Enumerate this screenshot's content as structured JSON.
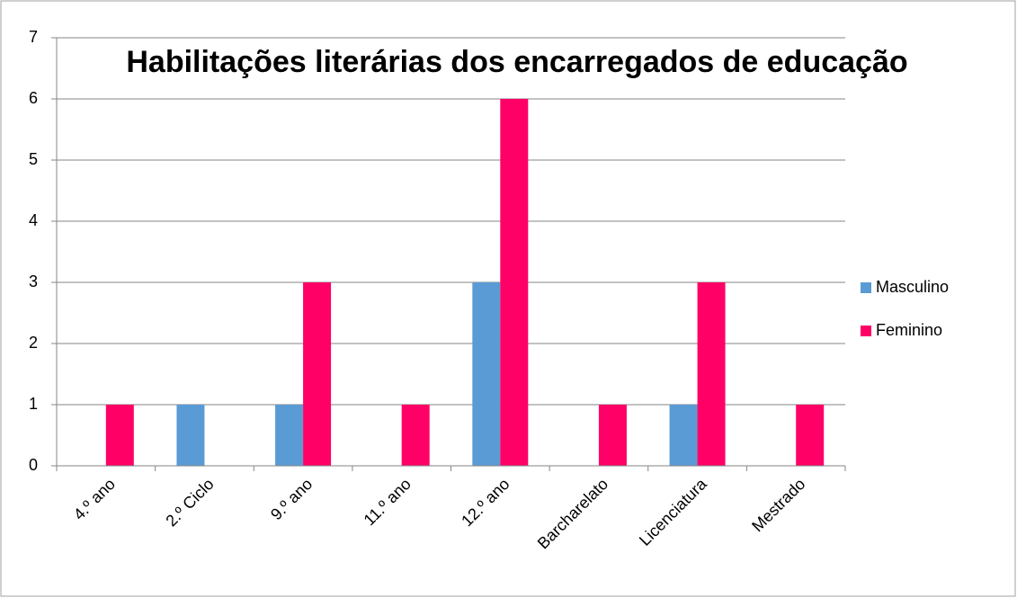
{
  "chart_data": {
    "type": "bar",
    "title": "Habilitações literárias dos encarregados de educação",
    "categories": [
      "4.º ano",
      "2.º Ciclo",
      "9.º ano",
      "11.º ano",
      "12.º ano",
      "Barcharelato",
      "Licenciatura",
      "Mestrado"
    ],
    "series": [
      {
        "name": "Masculino",
        "color": "#5b9bd5",
        "values": [
          0,
          1,
          1,
          0,
          3,
          0,
          1,
          0
        ]
      },
      {
        "name": "Feminino",
        "color": "#ff0066",
        "values": [
          1,
          0,
          3,
          1,
          6,
          1,
          3,
          1
        ]
      }
    ],
    "ylim": [
      0,
      7
    ],
    "yticks": [
      0,
      1,
      2,
      3,
      4,
      5,
      6,
      7
    ],
    "grid": true,
    "legend": "right"
  }
}
